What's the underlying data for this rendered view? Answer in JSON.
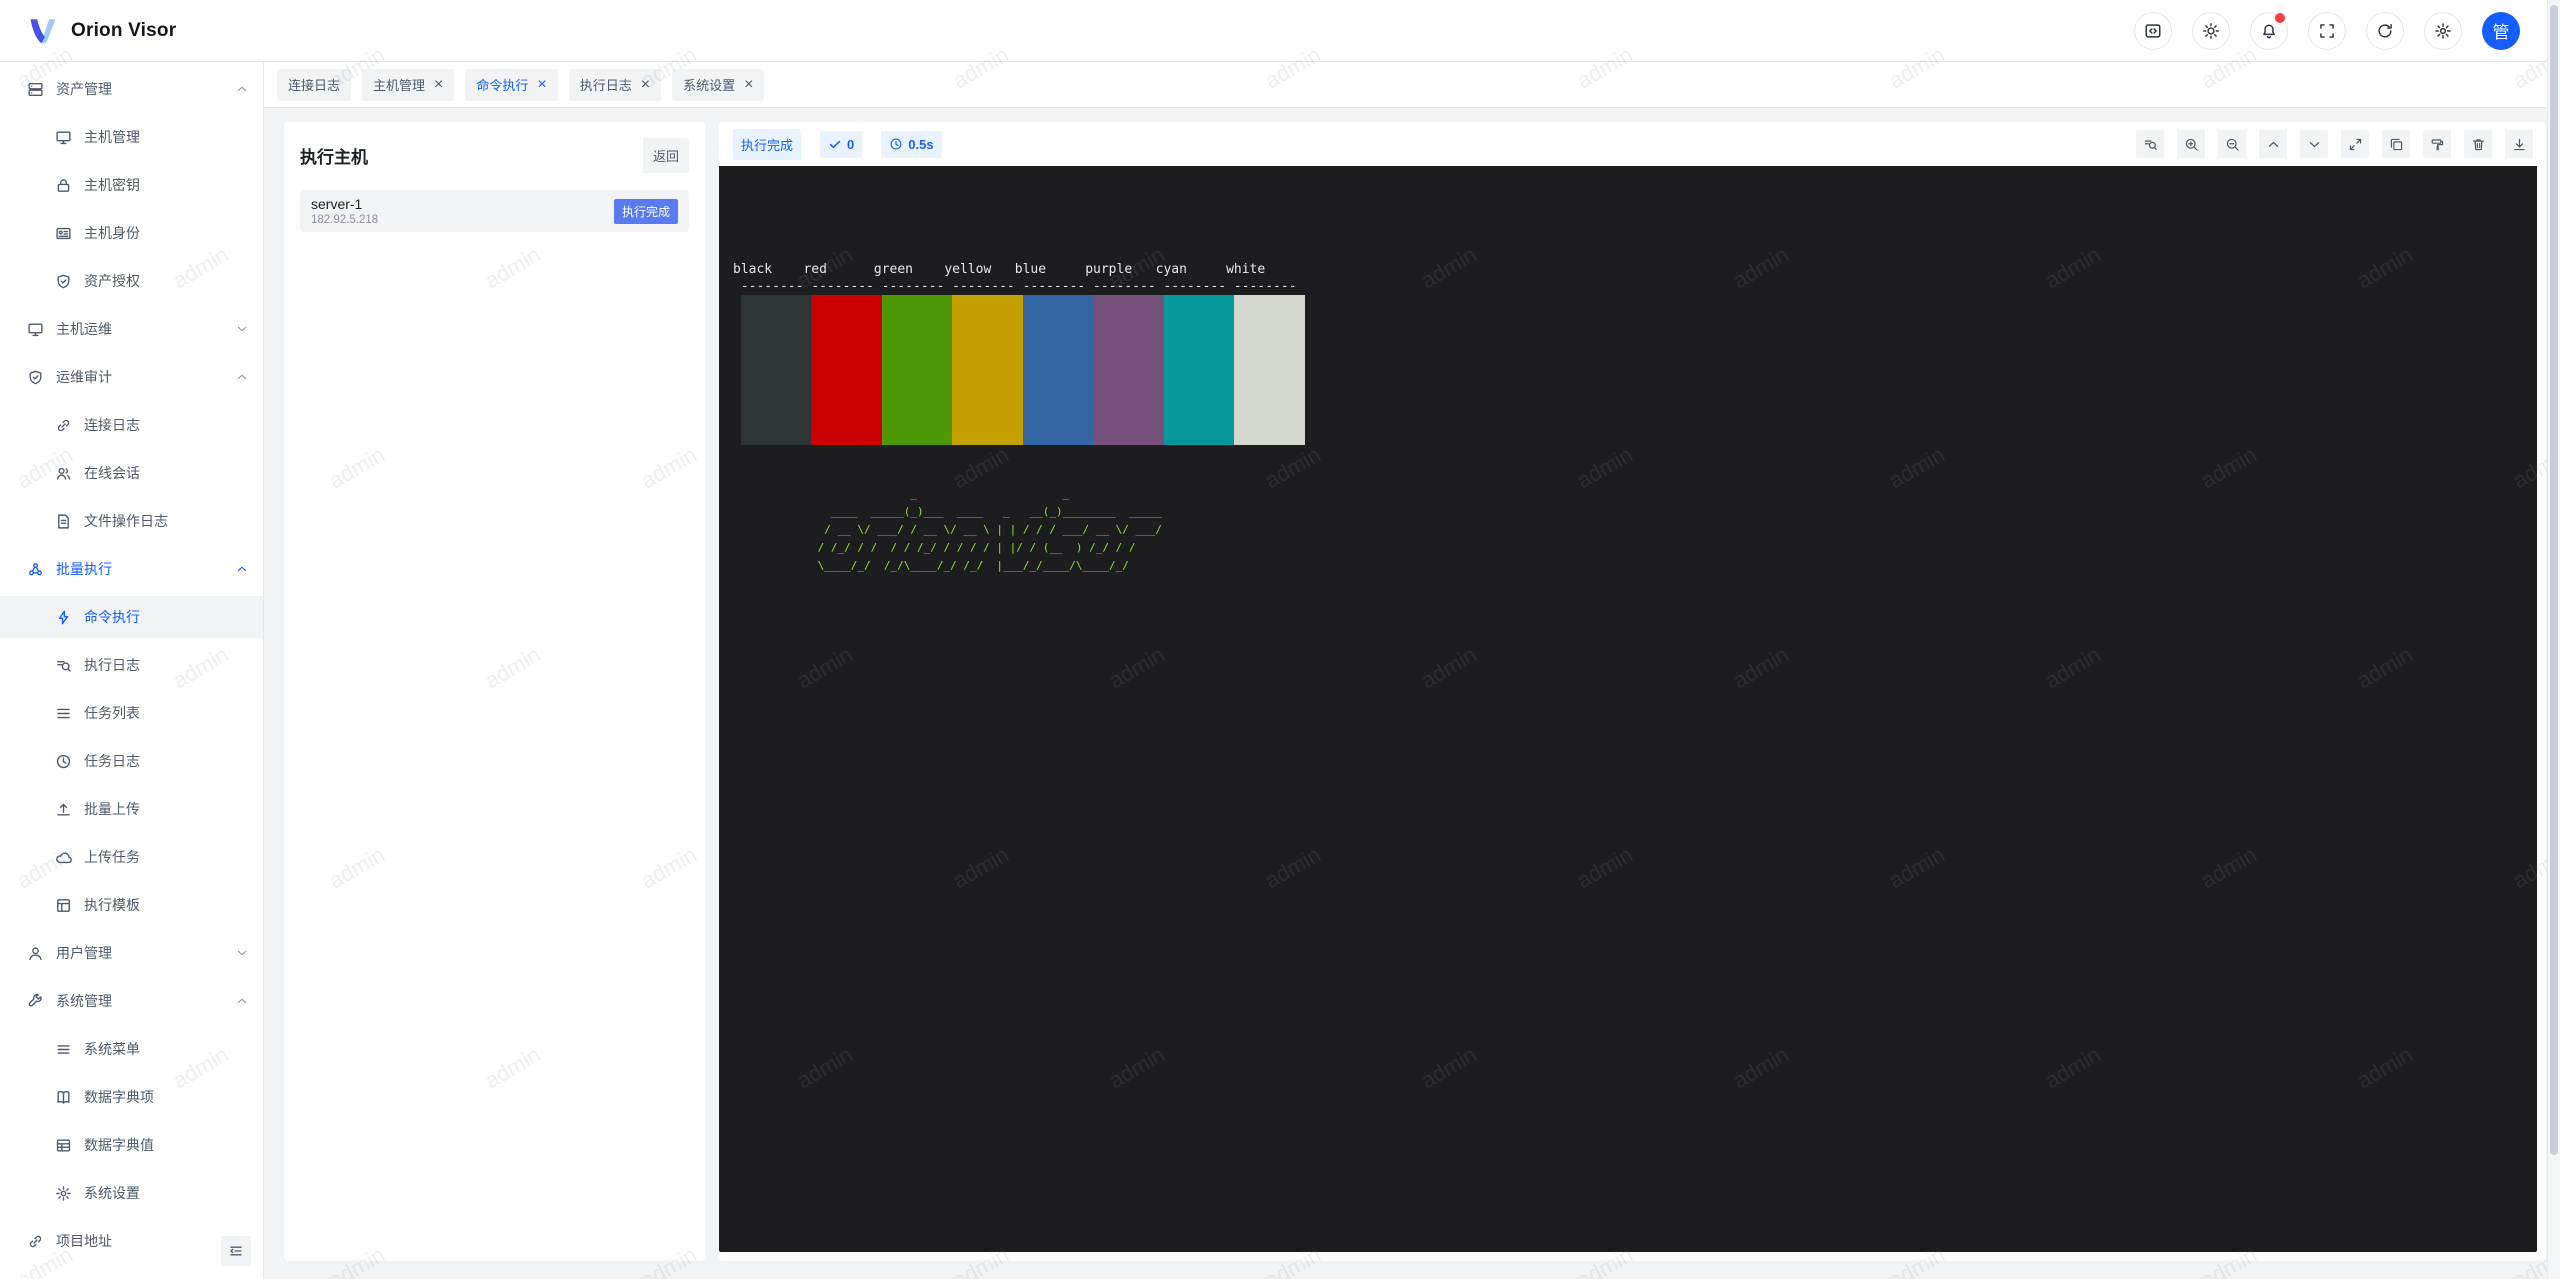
{
  "header": {
    "app_title": "Orion Visor",
    "avatar_text": "管",
    "icons": [
      "code-window",
      "theme-sun",
      "notifications-bell",
      "fullscreen",
      "refresh",
      "settings-gear"
    ],
    "notification_dot_color": "#f53f3f",
    "accent_color": "#165dff"
  },
  "tabs": {
    "close_glyph": "×",
    "items": [
      {
        "label": "连接日志",
        "closable": false,
        "active": false
      },
      {
        "label": "主机管理",
        "closable": true,
        "active": false
      },
      {
        "label": "命令执行",
        "closable": true,
        "active": true
      },
      {
        "label": "执行日志",
        "closable": true,
        "active": false
      },
      {
        "label": "系统设置",
        "closable": true,
        "active": false
      }
    ]
  },
  "sidebar": {
    "items": [
      {
        "label": "资产管理",
        "type": "group",
        "state": "expanded"
      },
      {
        "label": "主机管理",
        "type": "sub"
      },
      {
        "label": "主机密钥",
        "type": "sub"
      },
      {
        "label": "主机身份",
        "type": "sub"
      },
      {
        "label": "资产授权",
        "type": "sub"
      },
      {
        "label": "主机运维",
        "type": "group",
        "state": "collapsed"
      },
      {
        "label": "运维审计",
        "type": "group",
        "state": "expanded"
      },
      {
        "label": "连接日志",
        "type": "sub"
      },
      {
        "label": "在线会话",
        "type": "sub"
      },
      {
        "label": "文件操作日志",
        "type": "sub"
      },
      {
        "label": "批量执行",
        "type": "group",
        "state": "expanded",
        "highlighted": true
      },
      {
        "label": "命令执行",
        "type": "sub",
        "active": true
      },
      {
        "label": "执行日志",
        "type": "sub"
      },
      {
        "label": "任务列表",
        "type": "sub"
      },
      {
        "label": "任务日志",
        "type": "sub"
      },
      {
        "label": "批量上传",
        "type": "sub"
      },
      {
        "label": "上传任务",
        "type": "sub"
      },
      {
        "label": "执行模板",
        "type": "sub"
      },
      {
        "label": "用户管理",
        "type": "group",
        "state": "collapsed"
      },
      {
        "label": "系统管理",
        "type": "group",
        "state": "expanded"
      },
      {
        "label": "系统菜单",
        "type": "sub"
      },
      {
        "label": "数据字典项",
        "type": "sub"
      },
      {
        "label": "数据字典值",
        "type": "sub"
      },
      {
        "label": "系统设置",
        "type": "sub"
      },
      {
        "label": "项目地址",
        "type": "group",
        "state": "none"
      }
    ]
  },
  "host_panel": {
    "title": "执行主机",
    "back_button": "返回",
    "host": {
      "name": "server-1",
      "ip": "182.92.5.218",
      "status": "执行完成",
      "status_bg": "#5A7BF0"
    }
  },
  "terminal_toolbar": {
    "status_badge": "执行完成",
    "exit_code": "0",
    "duration": "0.5s",
    "icons": [
      "search-output",
      "zoom-in",
      "zoom-out",
      "scroll-up",
      "scroll-down",
      "expand",
      "copy",
      "clear",
      "trash",
      "download"
    ]
  },
  "terminal": {
    "background": "#1d1d1f",
    "labels_line": "black    red      green    yellow   blue     purple   cyan     white",
    "dashes_line": " -------- -------- -------- -------- -------- -------- -------- --------",
    "colors": {
      "black": "#2E3436",
      "red": "#CC0000",
      "green": "#4E9A06",
      "yellow": "#C4A000",
      "blue": "#3465A4",
      "purple": "#75507B",
      "cyan": "#06989A",
      "white": "#D3D7CF"
    },
    "ascii_color": "#8AE234",
    "ascii_art": "               _                      _                \n   ____  _____(_)___  ____   _   __(_)________  _____\n  / __ \\/ ___/ / __ \\/ __ \\ | | / / / ___/ __ \\/ ___/\n / /_/ / /  / / /_/ / / / / | |/ / (__  ) /_/ / /    \n \\____/_/  /_/\\____/_/ /_/  |___/_/____/\\____/_/     "
  },
  "watermark": {
    "text": "admin"
  }
}
